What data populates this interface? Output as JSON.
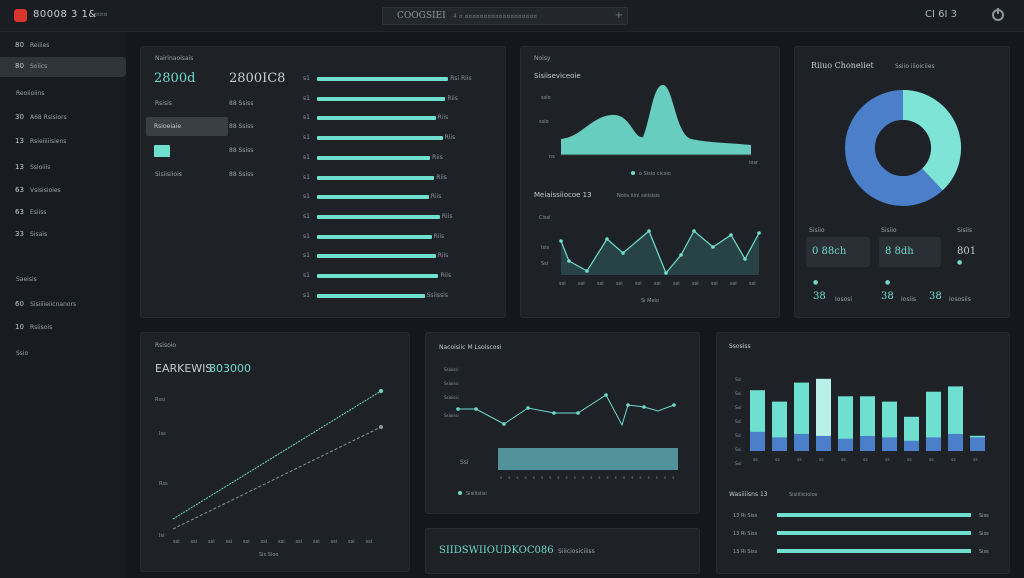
{
  "topbar": {
    "app_title": "80008 3 1&",
    "app_sub": "¤¤¤",
    "search_title": "COOGSIEI",
    "search_meta": "4 ¤ ¤¤¤¤¤¤¤¤¤¤¤¤¤¤¤¤¤¤¤",
    "search_plus": "+",
    "code": "CI 6I 3",
    "colors": {
      "accent": "#6fe0cf",
      "brand": "#d9362b"
    }
  },
  "sidebar": {
    "items": [
      {
        "num": "80",
        "label": "Reiiies"
      },
      {
        "num": "80",
        "label": "Soiics"
      },
      {
        "num": "",
        "label": "Reoiioiins"
      },
      {
        "num": "30",
        "label": "A68 Rsisiors"
      },
      {
        "num": "13",
        "label": "Rsieiiiiisiens"
      },
      {
        "num": "13",
        "label": "Ssioiiis"
      },
      {
        "num": "63",
        "label": "Vsisisioies"
      },
      {
        "num": "63",
        "label": "Esiiss"
      },
      {
        "num": "33",
        "label": "Sisais"
      },
      {
        "num": "",
        "label": "Saeisis"
      },
      {
        "num": "60",
        "label": "Sisiiiieiicnanors"
      },
      {
        "num": "10",
        "label": "Rsiisois"
      },
      {
        "num": "",
        "label": "Ssio"
      }
    ]
  },
  "card1": {
    "title": "Nairinaoisais",
    "big1": "2800d",
    "big2": "2800IC8",
    "sub1": "Rsisis",
    "sub2": "88 Ssiss",
    "btn": "Rsioeiaie",
    "sub3": "88 Ssiss",
    "foot1": "Sisiisiiois",
    "foot2": "88 Ssiss",
    "bar_labels_left": [
      "s1",
      "s1",
      "s1",
      "s1",
      "s1",
      "s1",
      "s1",
      "s1",
      "s1",
      "s1",
      "s1",
      "s1"
    ],
    "bar_labels_right": [
      "Rsi Riis",
      "Riis",
      "Riis",
      "Riis",
      "Riis",
      "Riis",
      "Riis",
      "Riis",
      "Riis",
      "Riis",
      "Riis",
      "Ssiissis"
    ],
    "bar_values": [
      0.95,
      0.93,
      0.86,
      0.91,
      0.82,
      0.85,
      0.81,
      0.89,
      0.83,
      0.86,
      0.88,
      0.78
    ]
  },
  "card2": {
    "title": "Noisy",
    "subtitle": "Sisiiseviceoie",
    "y_labels": [
      "ssio",
      "ssio",
      "ns"
    ],
    "legend": "o Sisio cicsio",
    "x_end": "iosr",
    "line_title": "Meiaissiiocoe 13",
    "line_sub": "Noiis iiini ssiisisis",
    "line_y": [
      "Cissi",
      "Isis",
      "Ssi"
    ],
    "line_x": [
      "ssi",
      "ssi",
      "ssi",
      "ssi",
      "ssi",
      "ssi",
      "ssi",
      "ssi",
      "ssi",
      "ssi",
      "ssi"
    ],
    "line_foot": "Si Meio"
  },
  "card3": {
    "title": "Riiuo Choneiiet",
    "sub": "Ssiio iiioiciies",
    "stats": [
      {
        "lbl": "Sisiio",
        "val": "0 88ch",
        "foot": "38",
        "foot_lbl": "Iososi"
      },
      {
        "lbl": "Sisiio",
        "val": "8 8dh",
        "foot": "38",
        "foot_lbl": "Iosiis"
      },
      {
        "lbl": "Sisiis",
        "val": "801",
        "foot": "38",
        "foot_lbl": "Iososiis"
      }
    ],
    "donut": {
      "segments": [
        0.62,
        0.38
      ],
      "colors": [
        "#4b7fc9",
        "#7ee4d6"
      ]
    }
  },
  "card4": {
    "title": "Rsisoio",
    "headline": "EARKEWIS",
    "headline_num": "803000",
    "y_labels": [
      "Rssi",
      "Iss",
      "Rss",
      "Isi"
    ],
    "x_labels": [
      "ssi",
      "ssi",
      "ssi",
      "ssi",
      "ssi",
      "ssi",
      "ssi",
      "ssi",
      "ssi",
      "ssi",
      "ssi",
      "ssi"
    ],
    "x_foot": "Sis Sioo"
  },
  "card5": {
    "title": "Nacoisiic M Lsoiscosi",
    "y_labels": [
      "Ssioissi",
      "Ssioissi",
      "Ssioissi",
      "Ssioissi"
    ],
    "bar_label": "Ssi",
    "x_labels": [
      "s",
      "s",
      "s",
      "s",
      "s",
      "s",
      "s",
      "s",
      "s",
      "s",
      "s",
      "s",
      "s",
      "s",
      "s",
      "s",
      "s",
      "s",
      "s",
      "s",
      "s",
      "s"
    ],
    "legend": "Sisiiisiisi"
  },
  "card6": {
    "headline": "SIIDSWIIOUDKOC086",
    "sub": "Siiiciosiciiiss"
  },
  "card7": {
    "title": "Ssosiss",
    "y_labels": [
      "Ssi",
      "Ssi",
      "Ssi",
      "Ssi",
      "Ssi",
      "Ssi",
      "Ssi"
    ],
    "x_labels": [
      "ss",
      "ss",
      "ss",
      "ss",
      "ss",
      "ss",
      "ss",
      "ss",
      "ss",
      "ss",
      "ss"
    ],
    "chart_title": "Wasiiiisns 13",
    "chart_sub": "Sisiiiiicioios",
    "bar_top": [
      0.8,
      0.65,
      0.9,
      0.95,
      0.72,
      0.72,
      0.65,
      0.45,
      0.78,
      0.85,
      0.2
    ],
    "bar_bottom": [
      0.28,
      0.2,
      0.25,
      0.22,
      0.18,
      0.22,
      0.2,
      0.15,
      0.2,
      0.25,
      0.2
    ],
    "rows": [
      {
        "lbl": "13 Ri Siss",
        "val": "Siss"
      },
      {
        "lbl": "13 Ri Siss",
        "val": "Siss"
      },
      {
        "lbl": "13 Ri Siss",
        "val": "Siss"
      }
    ]
  }
}
